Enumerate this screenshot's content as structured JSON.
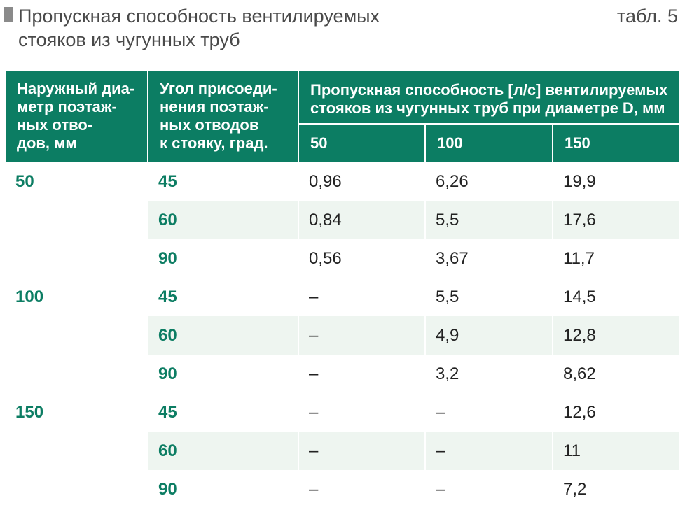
{
  "header": {
    "title_line1": "Пропускная способность вентилируемых",
    "title_line2": "стояков из чугунных труб",
    "table_ref": "табл. 5"
  },
  "table": {
    "columns": {
      "outer_diameter": [
        "Наружный диа-",
        "метр поэтаж-",
        "ных отво-",
        "дов, мм"
      ],
      "angle": [
        "Угол присоеди-",
        "нения поэтаж-",
        "ных отводов",
        "к стояку, град."
      ],
      "capacity": [
        "Пропускная способность [л/с] вентилируемых",
        "стояков из чугунных труб при диаметре D, мм"
      ],
      "sub": [
        "50",
        "100",
        "150"
      ]
    },
    "groups": [
      {
        "diameter": "50",
        "rows": [
          {
            "angle": "45",
            "v50": "0,96",
            "v100": "6,26",
            "v150": "19,9"
          },
          {
            "angle": "60",
            "v50": "0,84",
            "v100": "5,5",
            "v150": "17,6"
          },
          {
            "angle": "90",
            "v50": "0,56",
            "v100": "3,67",
            "v150": "11,7"
          }
        ]
      },
      {
        "diameter": "100",
        "rows": [
          {
            "angle": "45",
            "v50": "–",
            "v100": "5,5",
            "v150": "14,5"
          },
          {
            "angle": "60",
            "v50": "–",
            "v100": "4,9",
            "v150": "12,8"
          },
          {
            "angle": "90",
            "v50": "–",
            "v100": "3,2",
            "v150": "8,62"
          }
        ]
      },
      {
        "diameter": "150",
        "rows": [
          {
            "angle": "45",
            "v50": "–",
            "v100": "–",
            "v150": "12,6"
          },
          {
            "angle": "60",
            "v50": "–",
            "v100": "–",
            "v150": "11"
          },
          {
            "angle": "90",
            "v50": "–",
            "v100": "–",
            "v150": "7,2"
          }
        ]
      }
    ]
  },
  "colors": {
    "header_bg": "#0c7d63",
    "accent_text": "#0c7d63",
    "row_shade": "#eef5f0"
  }
}
